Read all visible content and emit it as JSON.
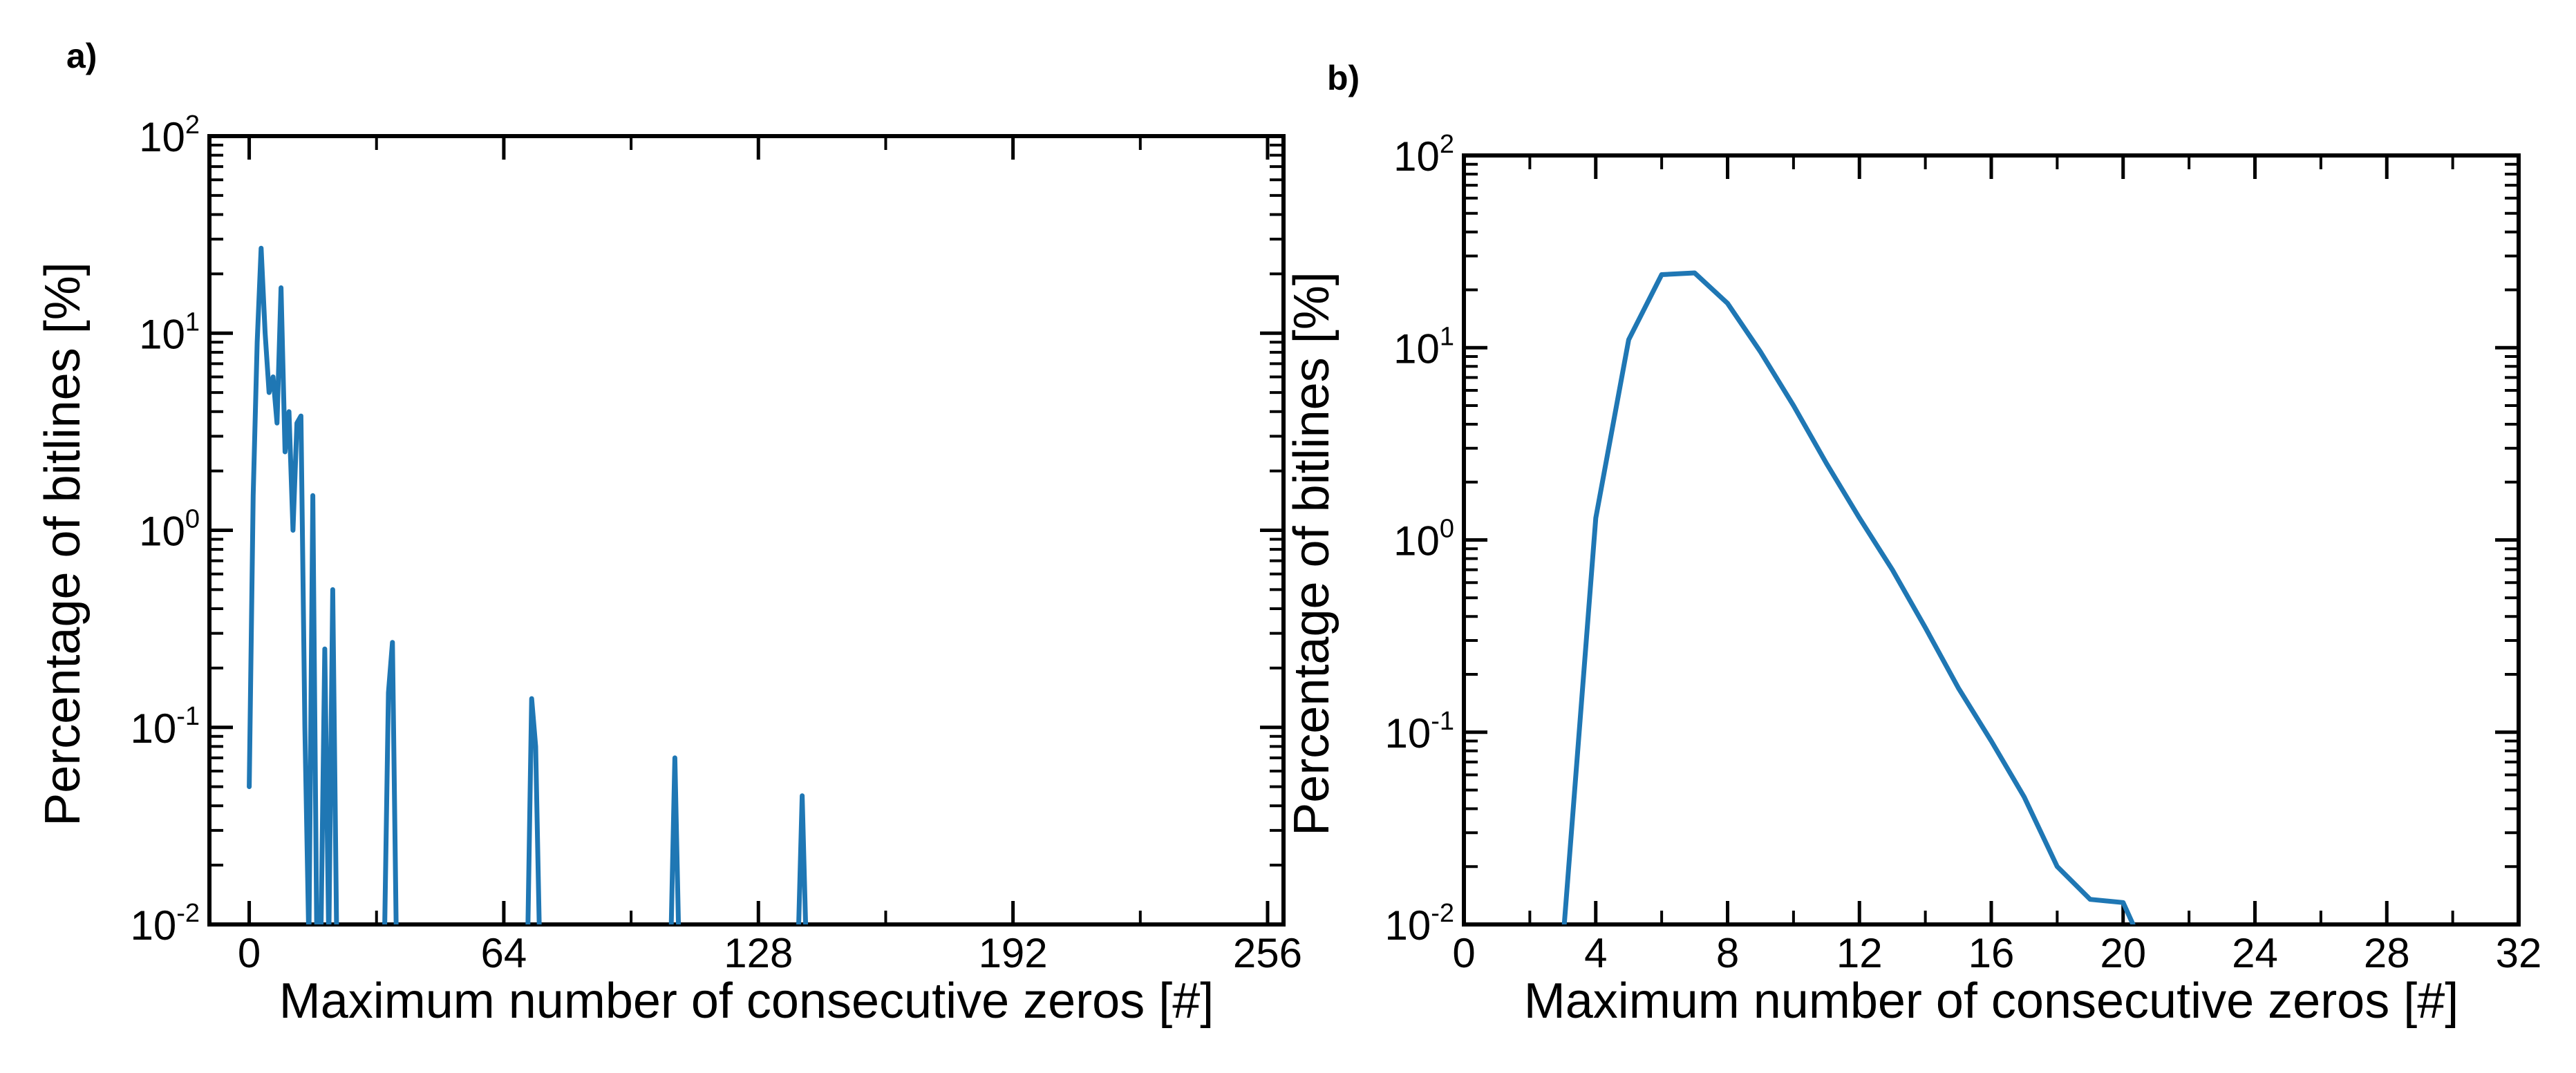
{
  "chart_data": [
    {
      "panel_label": "a)",
      "type": "line",
      "title": "",
      "xlabel": "Maximum number of consecutive zeros [#]",
      "ylabel": "Percentage of bitlines [%]",
      "xlim": [
        -10,
        260
      ],
      "ylim": [
        0.01,
        100
      ],
      "yscale": "log",
      "xticks": [
        0,
        64,
        128,
        192,
        256
      ],
      "yticks": [
        {
          "base": "10",
          "exp": "2"
        },
        {
          "base": "10",
          "exp": "1"
        },
        {
          "base": "10",
          "exp": "0"
        },
        {
          "base": "10",
          "exp": "-1"
        },
        {
          "base": "10",
          "exp": "-2"
        }
      ],
      "color": "#1f77b4",
      "series": [
        {
          "name": "bitlines",
          "x": [
            0,
            1,
            2,
            3,
            4,
            5,
            6,
            7,
            8,
            9,
            10,
            11,
            12,
            13,
            14,
            15,
            16,
            17,
            18,
            19,
            20,
            21,
            22,
            23,
            24,
            25,
            26,
            27,
            28,
            29,
            30,
            31,
            32,
            33,
            34,
            35,
            36,
            37,
            38,
            39,
            40,
            70,
            71,
            72,
            73,
            74,
            106,
            107,
            108,
            138,
            139,
            140
          ],
          "y": [
            0.05,
            1.5,
            9,
            27,
            10,
            5,
            6,
            3.5,
            17,
            2.5,
            4,
            1,
            3.5,
            3.8,
            0.1,
            0.008,
            1.5,
            0.008,
            0.008,
            0.25,
            0.008,
            0.5,
            0.008,
            0.008,
            0.008,
            0.008,
            0.008,
            0.008,
            0.008,
            0.008,
            0.008,
            0.008,
            0.008,
            0.008,
            0.008,
            0.15,
            0.27,
            0.008,
            0.008,
            0.008,
            0.008,
            0.008,
            0.14,
            0.08,
            0.008,
            0.008,
            0.008,
            0.07,
            0.008,
            0.008,
            0.045,
            0.008
          ]
        }
      ]
    },
    {
      "panel_label": "b)",
      "type": "line",
      "title": "",
      "xlabel": "Maximum number of consecutive zeros [#]",
      "ylabel": "Percentage of bitlines [%]",
      "xlim": [
        0,
        32
      ],
      "ylim": [
        0.01,
        100
      ],
      "yscale": "log",
      "xticks": [
        0,
        4,
        8,
        12,
        16,
        20,
        24,
        28,
        32
      ],
      "yticks": [
        {
          "base": "10",
          "exp": "2"
        },
        {
          "base": "10",
          "exp": "1"
        },
        {
          "base": "10",
          "exp": "0"
        },
        {
          "base": "10",
          "exp": "-1"
        },
        {
          "base": "10",
          "exp": "-2"
        }
      ],
      "color": "#1f77b4",
      "series": [
        {
          "name": "bitlines",
          "x": [
            3,
            4,
            5,
            6,
            7,
            8,
            9,
            10,
            11,
            12,
            13,
            14,
            15,
            16,
            17,
            18,
            19,
            20,
            20.3
          ],
          "y": [
            0.008,
            1.3,
            11,
            24,
            24.5,
            17,
            9.5,
            5,
            2.5,
            1.3,
            0.7,
            0.35,
            0.17,
            0.09,
            0.046,
            0.02,
            0.0135,
            0.013,
            0.01
          ]
        }
      ]
    }
  ]
}
